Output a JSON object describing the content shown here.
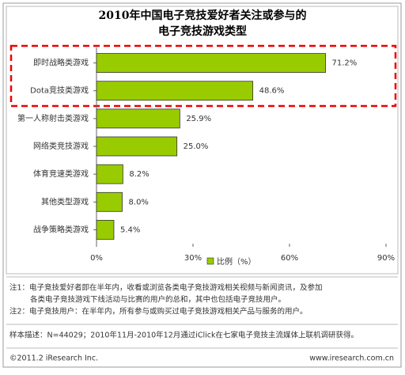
{
  "chart_data": {
    "type": "hbar",
    "title": [
      "2010年中国电子竞技爱好者关注或参与的",
      "电子竞技游戏类型"
    ],
    "categories": [
      "即时战略类游戏",
      "Dota竞技类游戏",
      "第一人称射击类游戏",
      "网络类竞技游戏",
      "体育竞速类游戏",
      "其他类型游戏",
      "战争策略类游戏"
    ],
    "values": [
      71.2,
      48.6,
      25.9,
      25.0,
      8.2,
      8.0,
      5.4
    ],
    "value_labels": [
      "71.2%",
      "48.6%",
      "25.9%",
      "25.0%",
      "8.2%",
      "8.0%",
      "5.4%"
    ],
    "color": "#99cc00",
    "legend": "比例（%）",
    "xlim": [
      0,
      90
    ],
    "xticks": [
      {
        "value": 0,
        "label": "0%"
      },
      {
        "value": 30,
        "label": "30%"
      },
      {
        "value": 60,
        "label": "60%"
      },
      {
        "value": 90,
        "label": "90%"
      }
    ],
    "grid": false
  },
  "notes": [
    "注1：电子竞技爱好者即在半年内，收看或浏览各类电子竞技游戏相关视频与新闻资讯，及参加",
    "各类电子竞技游戏下线活动与比赛的用户的总和，其中也包括电子竞技用户。",
    "注2：电子竞技用户：在半年内，所有参与或购买过电子竞技游戏相关产品与服务的用户。"
  ],
  "sample": "样本描述：N=44029；2010年11月-2010年12月通过iClick在七家电子竞技主流媒体上联机调研获得。",
  "footer": {
    "copyright": "©2011.2 iResearch Inc.",
    "url": "www.iresearch.com.cn"
  }
}
